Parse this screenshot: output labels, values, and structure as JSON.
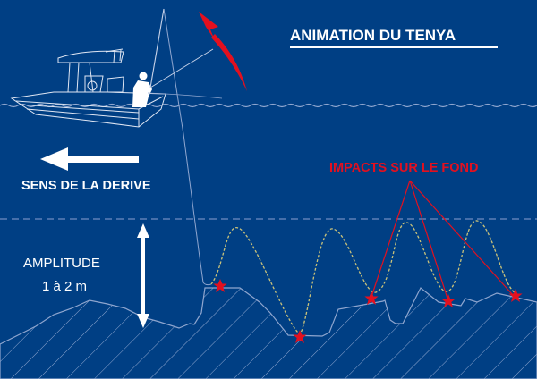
{
  "title": "ANIMATION DU TENYA",
  "drift_label": "SENS DE LA DERIVE",
  "impacts_label": "IMPACTS SUR LE FOND",
  "amplitude_label": "AMPLITUDE",
  "amplitude_value": "1 à 2 m",
  "colors": {
    "background": "#003f84",
    "accent": "#e3101f",
    "line": "#8fa6cf",
    "path": "#c9c27a"
  },
  "icons": [
    "boat-icon",
    "fisherman-icon",
    "rod-lift-arrow-icon",
    "drift-arrow-icon",
    "amplitude-arrow-icon",
    "impact-star-icon"
  ]
}
